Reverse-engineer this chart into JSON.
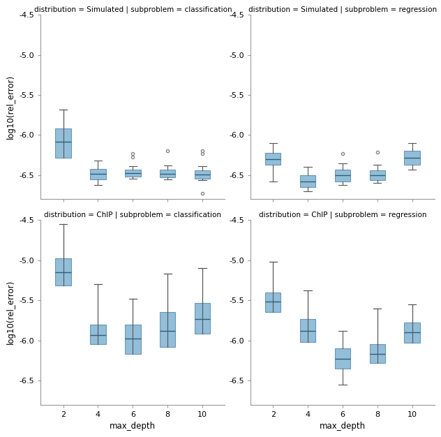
{
  "panels": [
    {
      "title": "distribution = Simulated | subproblem = classification",
      "positions": [
        1,
        2,
        3,
        4,
        5
      ],
      "box_data": [
        {
          "med": -6.08,
          "q1": -6.28,
          "q3": -5.92,
          "whislo": -5.68,
          "whishi": -5.68,
          "fliers": []
        },
        {
          "med": -6.48,
          "q1": -6.55,
          "q3": -6.42,
          "whislo": -6.62,
          "whishi": -6.32,
          "fliers": []
        },
        {
          "med": -6.47,
          "q1": -6.52,
          "q3": -6.43,
          "whislo": -6.54,
          "whishi": -6.39,
          "fliers": [
            -6.27,
            -6.23
          ]
        },
        {
          "med": -6.48,
          "q1": -6.53,
          "q3": -6.43,
          "whislo": -6.55,
          "whishi": -6.38,
          "fliers": [
            -6.2
          ]
        },
        {
          "med": -6.49,
          "q1": -6.54,
          "q3": -6.44,
          "whislo": -6.56,
          "whishi": -6.39,
          "fliers": [
            -6.2,
            -6.23,
            -6.73
          ]
        }
      ],
      "ylim": [
        -6.8,
        -4.5
      ],
      "yticks": [
        -6.5,
        -6.0,
        -5.5,
        -5.0,
        -4.5
      ],
      "ylabel": "log10(rel_error)",
      "xlabel": "",
      "show_xticks": false
    },
    {
      "title": "distribution = Simulated | subproblem = regression",
      "positions": [
        1,
        2,
        3,
        4,
        5
      ],
      "box_data": [
        {
          "med": -6.3,
          "q1": -6.37,
          "q3": -6.22,
          "whislo": -6.58,
          "whishi": -6.1,
          "fliers": []
        },
        {
          "med": -6.58,
          "q1": -6.65,
          "q3": -6.5,
          "whislo": -6.7,
          "whishi": -6.4,
          "fliers": []
        },
        {
          "med": -6.5,
          "q1": -6.58,
          "q3": -6.43,
          "whislo": -6.62,
          "whishi": -6.35,
          "fliers": [
            -6.23
          ]
        },
        {
          "med": -6.5,
          "q1": -6.56,
          "q3": -6.44,
          "whislo": -6.6,
          "whishi": -6.37,
          "fliers": [
            -6.21
          ]
        },
        {
          "med": -6.28,
          "q1": -6.37,
          "q3": -6.2,
          "whislo": -6.43,
          "whishi": -6.1,
          "fliers": []
        }
      ],
      "ylim": [
        -6.8,
        -4.5
      ],
      "yticks": [
        -6.5,
        -6.0,
        -5.5,
        -5.0,
        -4.5
      ],
      "ylabel": "",
      "xlabel": "",
      "show_xticks": false
    },
    {
      "title": "distribution = ChIP | subproblem = classification",
      "positions": [
        1,
        2,
        3,
        4,
        5
      ],
      "box_data": [
        {
          "med": -5.15,
          "q1": -5.32,
          "q3": -4.98,
          "whislo": -4.55,
          "whishi": -4.55,
          "fliers": []
        },
        {
          "med": -5.93,
          "q1": -6.05,
          "q3": -5.8,
          "whislo": -5.3,
          "whishi": -5.3,
          "fliers": []
        },
        {
          "med": -5.98,
          "q1": -6.17,
          "q3": -5.8,
          "whislo": -5.48,
          "whishi": -5.48,
          "fliers": []
        },
        {
          "med": -5.88,
          "q1": -6.08,
          "q3": -5.65,
          "whislo": -5.17,
          "whishi": -5.17,
          "fliers": []
        },
        {
          "med": -5.73,
          "q1": -5.92,
          "q3": -5.53,
          "whislo": -5.1,
          "whishi": -5.1,
          "fliers": []
        }
      ],
      "ylim": [
        -6.8,
        -4.5
      ],
      "yticks": [
        -6.5,
        -6.0,
        -5.5,
        -5.0,
        -4.5
      ],
      "ylabel": "log10(rel_error)",
      "xlabel": "max_depth",
      "show_xticks": true
    },
    {
      "title": "distribution = ChIP | subproblem = regression",
      "positions": [
        1,
        2,
        3,
        4,
        5
      ],
      "box_data": [
        {
          "med": -5.52,
          "q1": -5.65,
          "q3": -5.4,
          "whislo": -5.02,
          "whishi": -5.02,
          "fliers": []
        },
        {
          "med": -5.88,
          "q1": -6.02,
          "q3": -5.73,
          "whislo": -5.38,
          "whishi": -5.38,
          "fliers": []
        },
        {
          "med": -6.23,
          "q1": -6.35,
          "q3": -6.1,
          "whislo": -6.55,
          "whishi": -5.88,
          "fliers": []
        },
        {
          "med": -6.17,
          "q1": -6.28,
          "q3": -6.05,
          "whislo": -5.6,
          "whishi": -5.6,
          "fliers": []
        },
        {
          "med": -5.9,
          "q1": -6.03,
          "q3": -5.78,
          "whislo": -5.55,
          "whishi": -5.55,
          "fliers": []
        }
      ],
      "ylim": [
        -6.8,
        -4.5
      ],
      "yticks": [
        -6.5,
        -6.0,
        -5.5,
        -5.0,
        -4.5
      ],
      "ylabel": "",
      "xlabel": "max_depth",
      "show_xticks": true
    }
  ],
  "xtick_labels": [
    "2",
    "4",
    "6",
    "8",
    "10"
  ],
  "box_facecolor": "#7fb3d3",
  "box_edgecolor": "#5a8aaa",
  "median_color": "#2c5f7a",
  "whisker_color": "#555555",
  "cap_color": "#555555",
  "flier_marker": "o",
  "flier_color": "#888888",
  "flier_size": 3,
  "axes_facecolor": "#ffffff",
  "figure_facecolor": "#ffffff",
  "grid_color": "#dddddd",
  "spine_color": "#999999",
  "title_fontsize": 7.5,
  "label_fontsize": 8.5,
  "tick_fontsize": 8
}
